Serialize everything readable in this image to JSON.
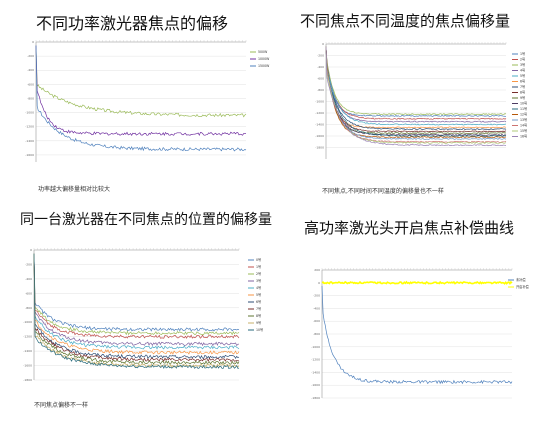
{
  "panels": [
    {
      "title": "不同功率激光器焦点的偏移",
      "caption": "功率越大偏移量相对比较大",
      "chart_data": {
        "type": "line",
        "ylim": [
          -1700,
          0
        ],
        "yticks": [
          0,
          -200,
          -400,
          -600,
          -800,
          -1000,
          -1200,
          -1400,
          -1600
        ],
        "legend_position": "right",
        "series": [
          {
            "name": "500W",
            "color": "#9bbb59",
            "start": -600,
            "end": -1040,
            "k": 0.18
          },
          {
            "name": "1000W",
            "color": "#7030a0",
            "start": -600,
            "end": -1300,
            "k": 0.05
          },
          {
            "name": "1500W",
            "color": "#4f81bd",
            "start": -900,
            "end": -1520,
            "k": 0.12
          }
        ]
      }
    },
    {
      "title": "不同焦点不同温度的焦点偏移量",
      "caption": "不同焦点,不同时间不同温度的偏移量也不一样",
      "chart_data": {
        "type": "line",
        "ylim": [
          -2000,
          0
        ],
        "yticks": [
          0,
          -200,
          -400,
          -600,
          -800,
          -1000,
          -1200,
          -1400,
          -1600,
          -1800
        ],
        "legend_position": "right",
        "series": [
          {
            "name": "1号",
            "color": "#4f81bd",
            "start": -200,
            "end": -1250,
            "k": 0.04
          },
          {
            "name": "2号",
            "color": "#c0504d",
            "start": -250,
            "end": -1300,
            "k": 0.05
          },
          {
            "name": "3号",
            "color": "#9bbb59",
            "start": -180,
            "end": -1220,
            "k": 0.045
          },
          {
            "name": "4号",
            "color": "#8064a2",
            "start": -220,
            "end": -1350,
            "k": 0.05
          },
          {
            "name": "5号",
            "color": "#4bacc6",
            "start": -300,
            "end": -1400,
            "k": 0.06
          },
          {
            "name": "6号",
            "color": "#f79646",
            "start": -200,
            "end": -1450,
            "k": 0.04
          },
          {
            "name": "7号",
            "color": "#2c4d75",
            "start": -350,
            "end": -1480,
            "k": 0.06
          },
          {
            "name": "8号",
            "color": "#772c2a",
            "start": -260,
            "end": -1520,
            "k": 0.05
          },
          {
            "name": "9号",
            "color": "#5f7530",
            "start": -200,
            "end": -1550,
            "k": 0.045
          },
          {
            "name": "10号",
            "color": "#4d3b62",
            "start": -300,
            "end": -1580,
            "k": 0.055
          },
          {
            "name": "11号",
            "color": "#276a7c",
            "start": -400,
            "end": -1600,
            "k": 0.07
          },
          {
            "name": "12号",
            "color": "#b65708",
            "start": -250,
            "end": -1620,
            "k": 0.05
          },
          {
            "name": "13号",
            "color": "#729aca",
            "start": -300,
            "end": -1650,
            "k": 0.06
          },
          {
            "name": "14号",
            "color": "#cd7371",
            "start": -350,
            "end": -1700,
            "k": 0.065
          },
          {
            "name": "15号",
            "color": "#afc97a",
            "start": -400,
            "end": -1720,
            "k": 0.07
          },
          {
            "name": "16号",
            "color": "#9983b5",
            "start": -500,
            "end": -1760,
            "k": 0.08
          }
        ]
      }
    },
    {
      "title": "同一台激光器在不同焦点的位置的偏移量",
      "caption": "不同焦点偏移不一样",
      "chart_data": {
        "type": "line",
        "ylim": [
          -1800,
          0
        ],
        "yticks": [
          0,
          -200,
          -400,
          -600,
          -800,
          -1000,
          -1200,
          -1400,
          -1600,
          -1800
        ],
        "legend_position": "right",
        "series": [
          {
            "name": "0号",
            "color": "#4f81bd",
            "start": -700,
            "end": -1100,
            "k": 0.09
          },
          {
            "name": "1号",
            "color": "#c0504d",
            "start": -800,
            "end": -1200,
            "k": 0.09
          },
          {
            "name": "2号",
            "color": "#9bbb59",
            "start": -750,
            "end": -1150,
            "k": 0.09
          },
          {
            "name": "3号",
            "color": "#8064a2",
            "start": -850,
            "end": -1300,
            "k": 0.1
          },
          {
            "name": "4号",
            "color": "#4bacc6",
            "start": -900,
            "end": -1350,
            "k": 0.1
          },
          {
            "name": "5号",
            "color": "#f79646",
            "start": -950,
            "end": -1420,
            "k": 0.11
          },
          {
            "name": "6号",
            "color": "#2c4d75",
            "start": -1000,
            "end": -1480,
            "k": 0.11
          },
          {
            "name": "7号",
            "color": "#772c2a",
            "start": -1050,
            "end": -1520,
            "k": 0.12
          },
          {
            "name": "8号",
            "color": "#5f7530",
            "start": -1100,
            "end": -1560,
            "k": 0.12
          },
          {
            "name": "9号",
            "color": "#c9b26b",
            "start": -1150,
            "end": -1600,
            "k": 0.12
          },
          {
            "name": "10号",
            "color": "#276a7c",
            "start": -1200,
            "end": -1620,
            "k": 0.13
          }
        ]
      }
    },
    {
      "title": "高功率激光头开启焦点补偿曲线",
      "caption": "",
      "chart_data": {
        "type": "line",
        "ylim": [
          -1800,
          200
        ],
        "yticks": [
          200,
          0,
          -200,
          -400,
          -600,
          -800,
          -1000,
          -1200,
          -1400,
          -1600,
          -1800
        ],
        "legend_position": "right",
        "series": [
          {
            "name": "未补偿",
            "color": "#4f81bd",
            "start": -400,
            "end": -1550,
            "k": 0.06
          },
          {
            "name": "开启补偿",
            "color": "#ffff00",
            "start": 0,
            "end": 0,
            "k": 0.1
          }
        ]
      }
    }
  ]
}
